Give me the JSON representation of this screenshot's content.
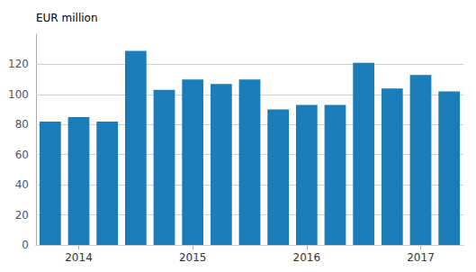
{
  "chart_data": {
    "type": "bar",
    "ylabel": "EUR million",
    "categories": [
      null,
      "2014",
      null,
      null,
      null,
      "2015",
      null,
      null,
      null,
      "2016",
      null,
      null,
      null,
      "2017",
      null
    ],
    "values": [
      82,
      85,
      82,
      129,
      103,
      110,
      107,
      110,
      90,
      93,
      93,
      121,
      104,
      113,
      102
    ],
    "color": "#1b7db8",
    "ylim": [
      0,
      140
    ],
    "yticks": [
      0,
      20,
      40,
      60,
      80,
      100,
      120
    ],
    "grid": true
  }
}
